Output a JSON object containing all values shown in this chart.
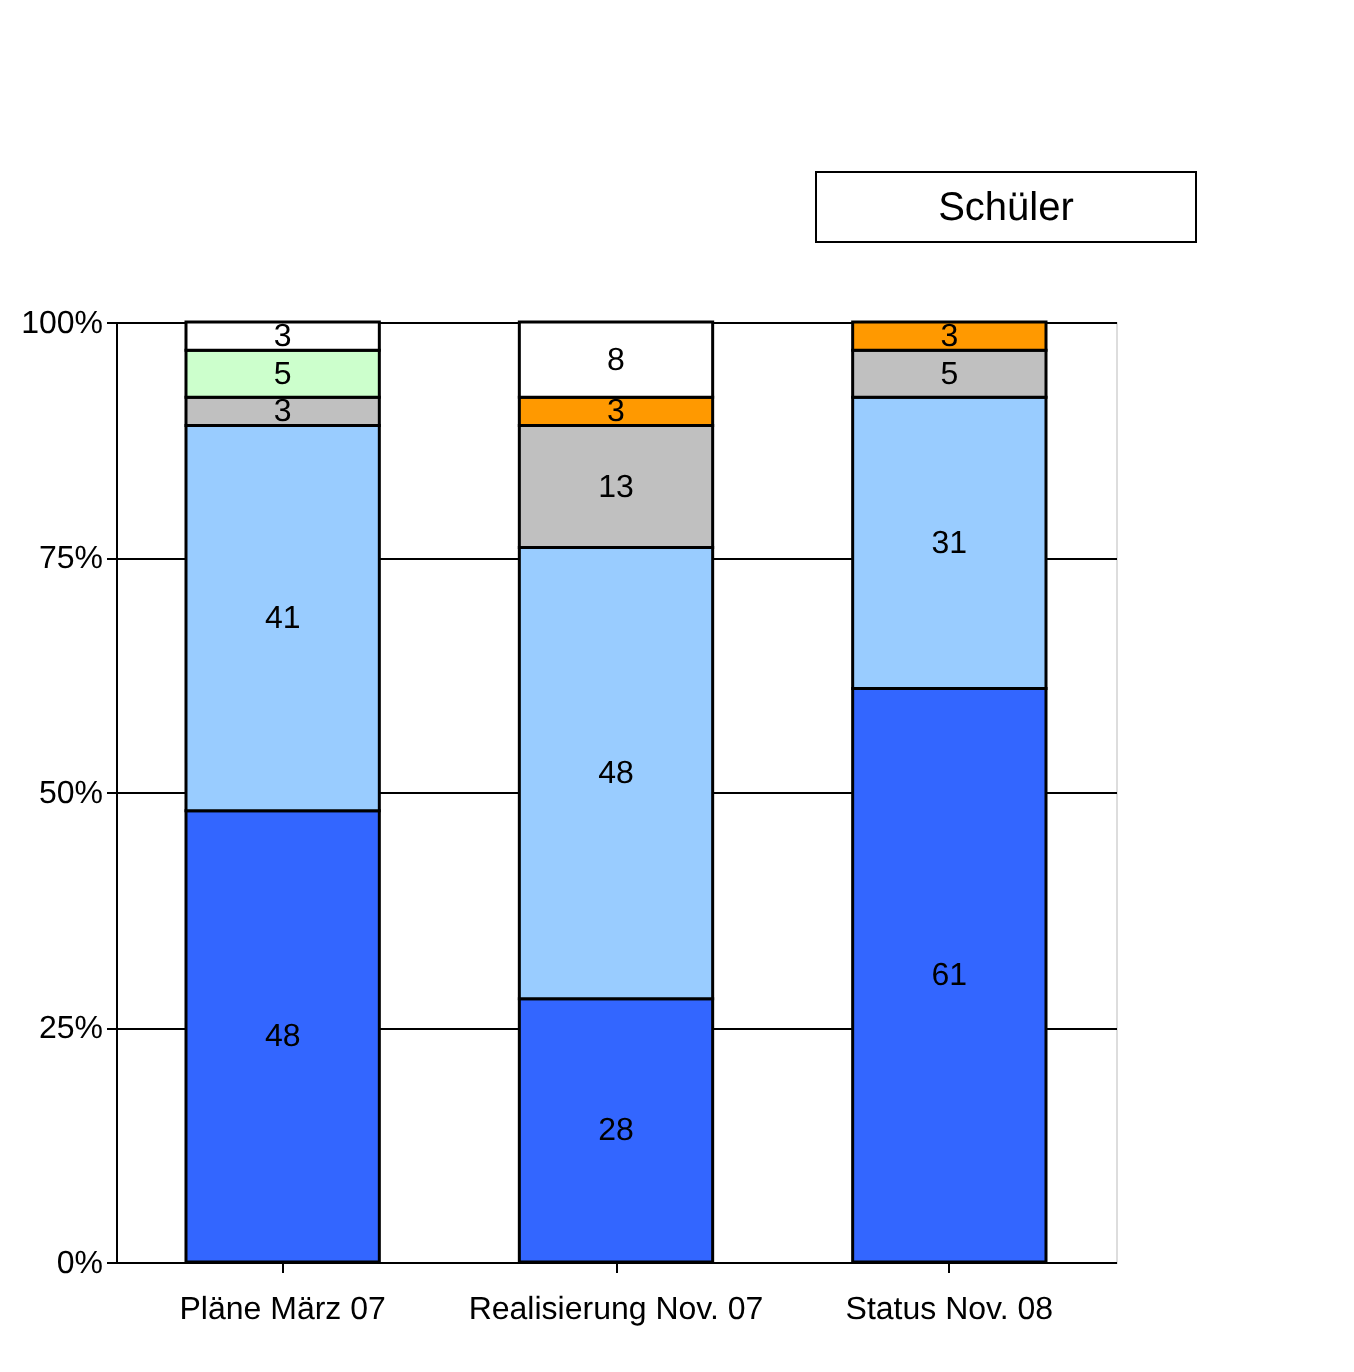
{
  "chart_data": {
    "type": "bar",
    "stacked": true,
    "title": "Schüler",
    "categories": [
      "Pläne März 07",
      "Realisierung Nov. 07",
      "Status Nov. 08"
    ],
    "series": [
      {
        "color": "#3366ff",
        "values": [
          48,
          28,
          61
        ]
      },
      {
        "color": "#99ccff",
        "values": [
          41,
          48,
          31
        ]
      },
      {
        "color": "#c0c0c0",
        "values": [
          3,
          13,
          5
        ]
      },
      {
        "color": "#ccffcc",
        "values": [
          5,
          null,
          null
        ]
      },
      {
        "color": "#ff9900",
        "values": [
          null,
          3,
          3
        ]
      },
      {
        "color": "#ffffff",
        "values": [
          3,
          8,
          null
        ]
      }
    ],
    "ylim": [
      0,
      100
    ],
    "yticks": [
      {
        "value": 0,
        "label": "0%"
      },
      {
        "value": 25,
        "label": "25%"
      },
      {
        "value": 50,
        "label": "50%"
      },
      {
        "value": 75,
        "label": "75%"
      },
      {
        "value": 100,
        "label": "100%"
      }
    ],
    "grid": "y",
    "data_labels": true
  }
}
